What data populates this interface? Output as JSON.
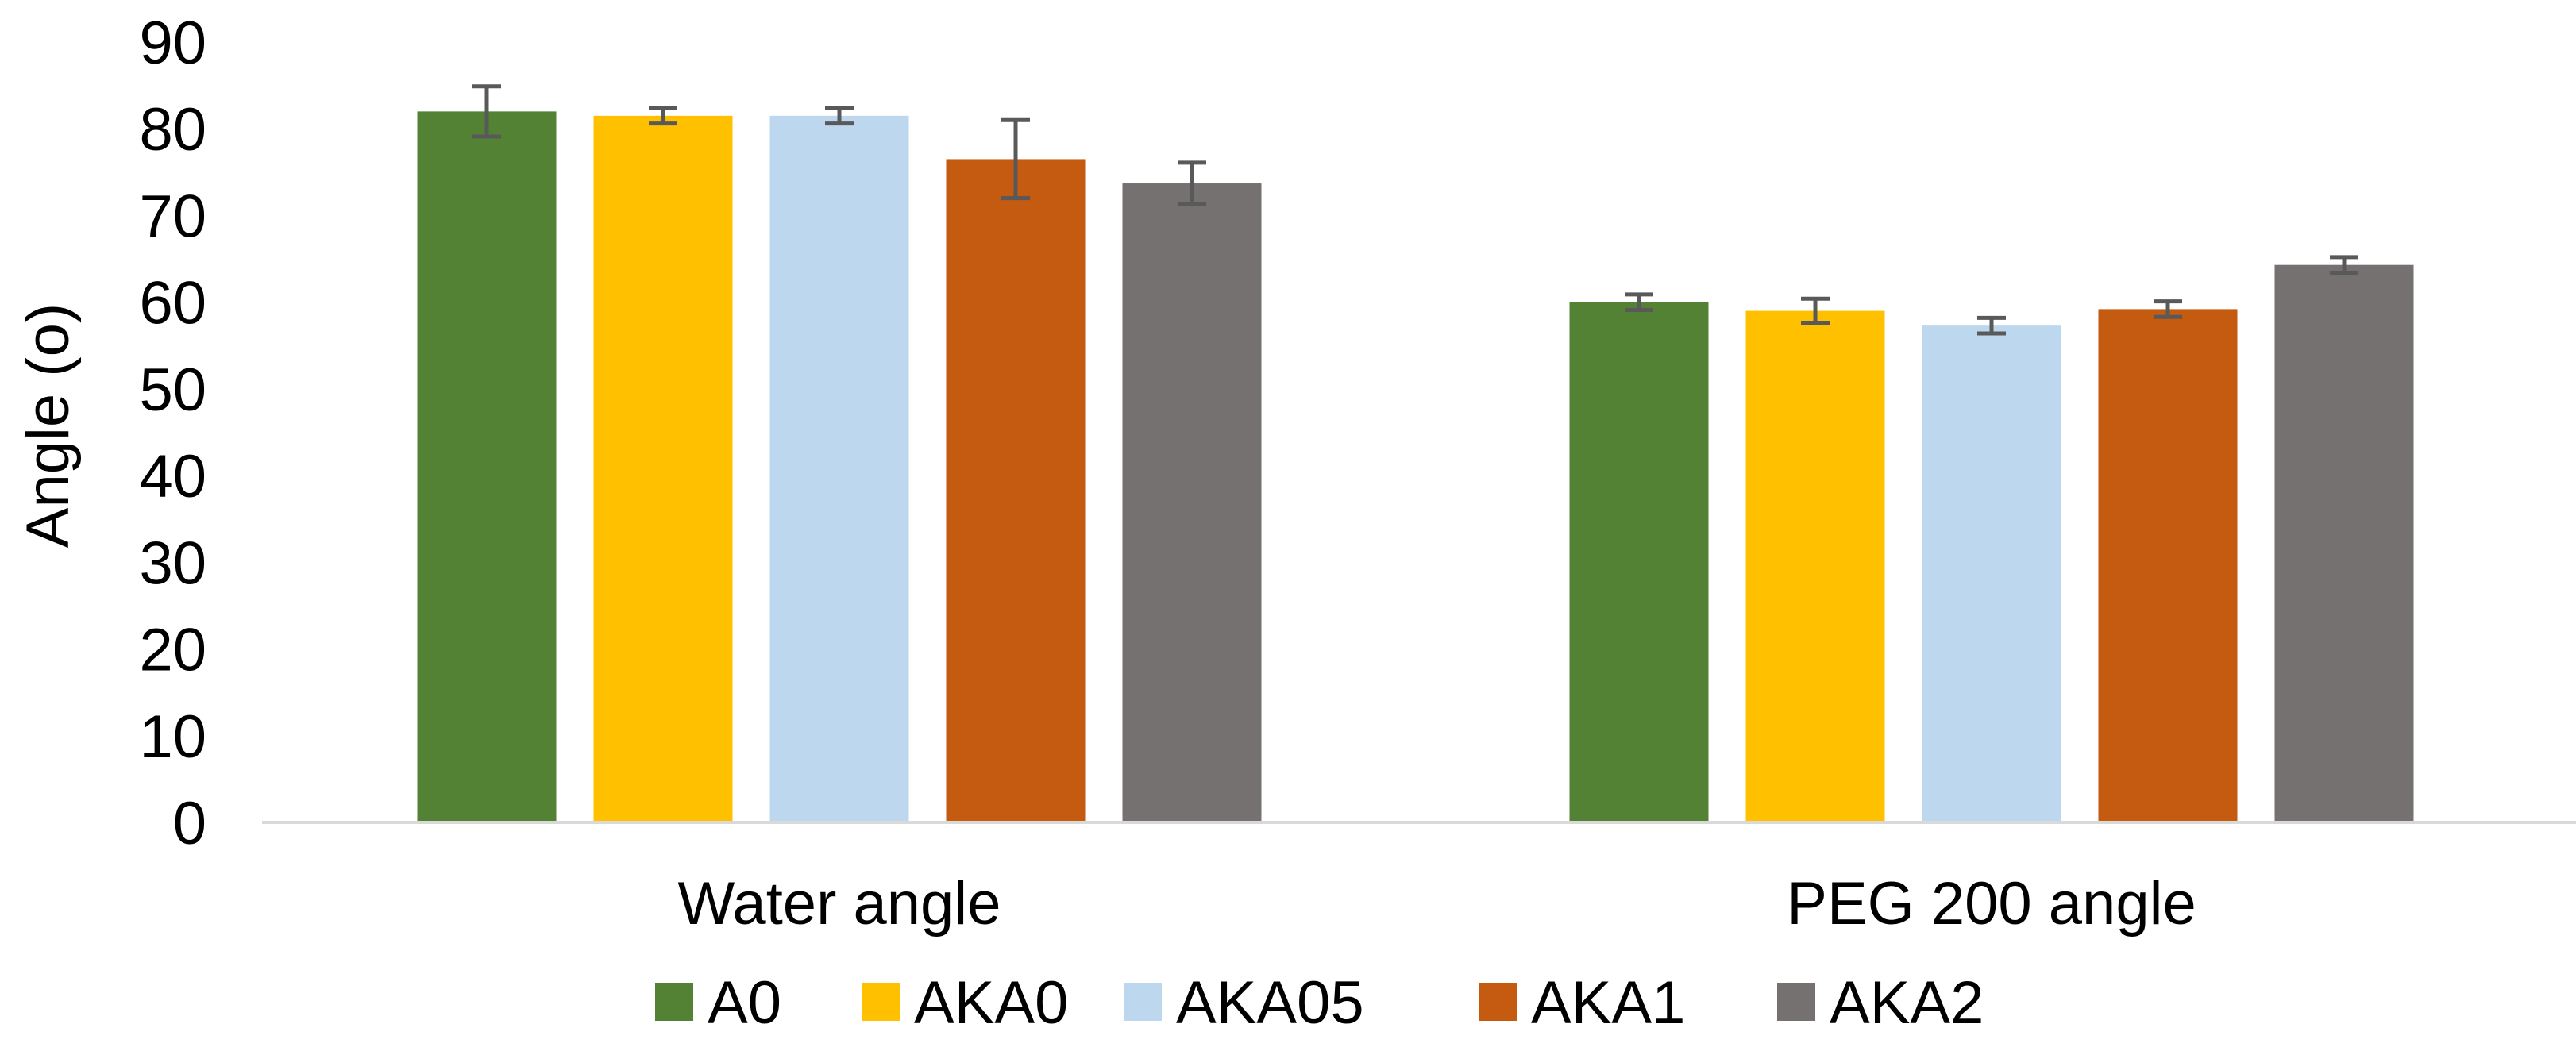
{
  "chart_data": {
    "type": "bar",
    "title": "",
    "xlabel": "",
    "ylabel": "Angle (o)",
    "ylim": [
      0,
      90
    ],
    "yticks": [
      0,
      10,
      20,
      30,
      40,
      50,
      60,
      70,
      80,
      90
    ],
    "grid": false,
    "legend_position": "bottom",
    "categories": [
      "Water angle",
      "PEG 200 angle"
    ],
    "series": [
      {
        "name": "A0",
        "color": "#548235",
        "values": [
          82.0,
          60.0
        ],
        "errors": [
          2.9,
          0.9
        ]
      },
      {
        "name": "AKA0",
        "color": "#FFC000",
        "values": [
          81.5,
          59.0
        ],
        "errors": [
          0.9,
          1.4
        ]
      },
      {
        "name": "AKA05",
        "color": "#BDD7EE",
        "values": [
          81.5,
          57.3
        ],
        "errors": [
          0.9,
          0.9
        ]
      },
      {
        "name": "AKA1",
        "color": "#C55A11",
        "values": [
          76.5,
          59.2
        ],
        "errors": [
          4.5,
          0.9
        ]
      },
      {
        "name": "AKA2",
        "color": "#767171",
        "values": [
          73.7,
          64.3
        ],
        "errors": [
          2.4,
          0.9
        ]
      }
    ]
  }
}
